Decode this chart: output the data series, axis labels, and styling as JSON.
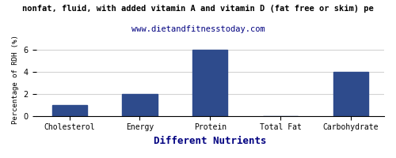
{
  "title": "nonfat, fluid, with added vitamin A and vitamin D (fat free or skim) pe",
  "subtitle": "www.dietandfitnesstoday.com",
  "xlabel": "Different Nutrients",
  "ylabel": "Percentage of RDH (%)",
  "categories": [
    "Cholesterol",
    "Energy",
    "Protein",
    "Total Fat",
    "Carbohydrate"
  ],
  "values": [
    1.0,
    2.0,
    6.0,
    0.0,
    4.0
  ],
  "bar_color": "#2e4b8c",
  "ylim": [
    0,
    6.6
  ],
  "yticks": [
    0,
    2,
    4,
    6
  ],
  "background_color": "#ffffff",
  "title_fontsize": 7.5,
  "subtitle_fontsize": 7.5,
  "xlabel_fontsize": 9,
  "ylabel_fontsize": 6.5,
  "tick_fontsize": 7
}
